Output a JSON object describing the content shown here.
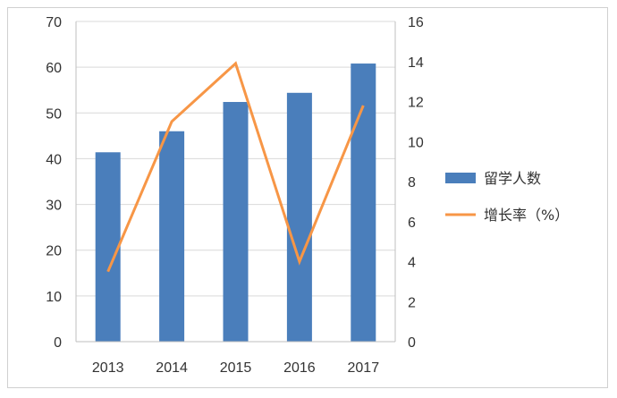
{
  "chart_data": {
    "type": "bar",
    "categories": [
      "2013",
      "2014",
      "2015",
      "2016",
      "2017"
    ],
    "series": [
      {
        "name": "留学人数",
        "type": "bar",
        "axis": "left",
        "color": "#4a7ebb",
        "values": [
          41.4,
          46.0,
          52.4,
          54.4,
          60.8
        ]
      },
      {
        "name": "增长率（%）",
        "type": "line",
        "axis": "right",
        "color": "#f79646",
        "values": [
          3.5,
          11.0,
          13.9,
          4.0,
          11.8
        ]
      }
    ],
    "y_left": {
      "ylim": [
        0,
        70
      ],
      "ticks": [
        "0",
        "10",
        "20",
        "30",
        "40",
        "50",
        "60",
        "70"
      ]
    },
    "y_right": {
      "ylim": [
        0,
        16
      ],
      "ticks": [
        "0",
        "2",
        "4",
        "6",
        "8",
        "10",
        "12",
        "14",
        "16"
      ]
    },
    "grid": true,
    "legend_position": "right"
  }
}
